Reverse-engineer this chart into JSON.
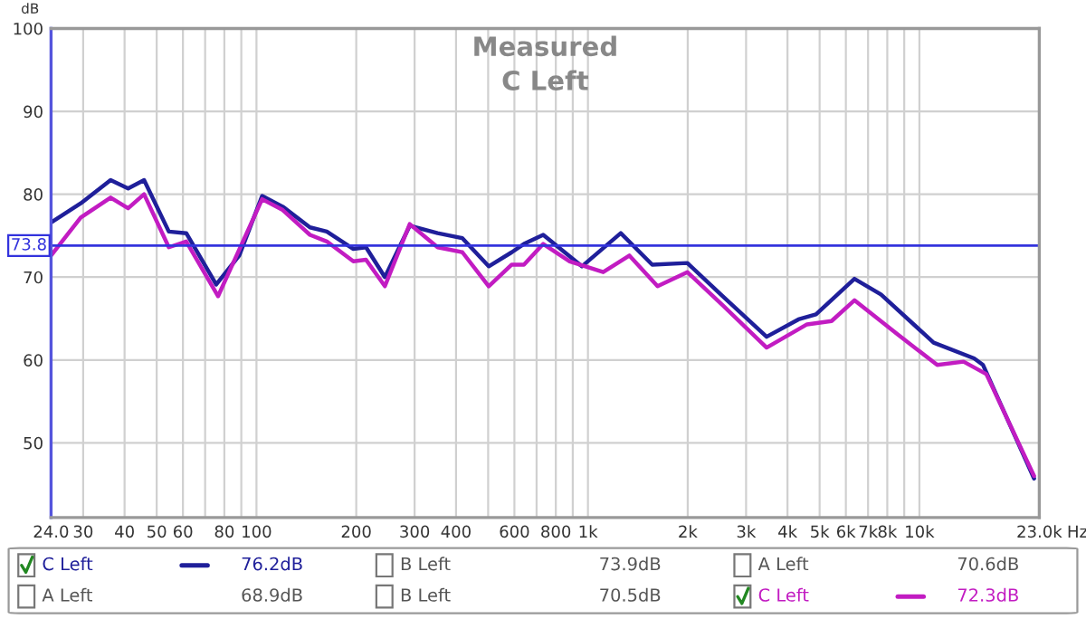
{
  "chart_data": {
    "type": "line",
    "title": "Measured",
    "subtitle": "C Left",
    "ylabel": "dB",
    "log": "x",
    "xlim": [
      24,
      23000
    ],
    "ylim": [
      41,
      100
    ],
    "xticks": [
      {
        "value": 24,
        "label": "24.0"
      },
      30,
      40,
      50,
      60,
      {
        "value": 70,
        "label": null
      },
      80,
      {
        "value": 90,
        "label": null
      },
      100,
      200,
      300,
      400,
      {
        "value": 500,
        "label": null
      },
      600,
      {
        "value": 700,
        "label": null
      },
      800,
      {
        "value": 900,
        "label": null
      },
      {
        "value": 1000,
        "label": "1k"
      },
      {
        "value": 2000,
        "label": "2k"
      },
      {
        "value": 3000,
        "label": "3k"
      },
      {
        "value": 4000,
        "label": "4k"
      },
      {
        "value": 5000,
        "label": "5k"
      },
      {
        "value": 6000,
        "label": "6k"
      },
      {
        "value": 7000,
        "label": "7k"
      },
      {
        "value": 8000,
        "label": "8k"
      },
      {
        "value": 9000,
        "label": null
      },
      {
        "value": 10000,
        "label": "10k"
      },
      {
        "value": 23000,
        "label": "23.0k"
      }
    ],
    "xlabel": "Hz",
    "yticks": [
      50,
      60,
      70,
      80,
      90,
      100
    ],
    "grid": true,
    "legend": "bottom",
    "marker": "none",
    "line_style": "solid",
    "ref_lines": [
      {
        "axis": "y",
        "value": 73.8,
        "label": "73.8",
        "color": "#3333dd"
      }
    ],
    "series": [
      {
        "name": "C Left",
        "color": "#1f1f9a",
        "x": [
          24,
          29.5,
          36.3,
          41,
          45.8,
          54.4,
          61.4,
          75.6,
          88.7,
          104,
          120,
          145,
          163,
          196,
          214,
          244,
          290,
          352,
          418,
          502,
          589,
          641,
          733,
          959,
          1256,
          1563,
          1995,
          2551,
          3460,
          4315,
          4875,
          6368,
          7656,
          11040,
          14620,
          15560,
          22180
        ],
        "values": [
          76.6,
          78.9,
          81.7,
          80.7,
          81.7,
          75.5,
          75.3,
          69.1,
          72.6,
          79.8,
          78.5,
          76.0,
          75.5,
          73.4,
          73.6,
          70.0,
          76.2,
          75.3,
          74.7,
          71.3,
          73.0,
          74.0,
          75.1,
          71.3,
          75.3,
          71.5,
          71.7,
          67.7,
          62.8,
          64.9,
          65.5,
          69.8,
          67.9,
          62.1,
          60.2,
          59.4,
          45.7
        ]
      },
      {
        "name": "C Left",
        "color": "#c21cc2",
        "x": [
          24,
          29.5,
          36.3,
          41,
          45.8,
          54.4,
          61.4,
          76.6,
          104,
          120,
          145,
          163,
          196,
          214,
          244,
          290,
          352,
          418,
          502,
          589,
          641,
          733,
          881,
          1112,
          1334,
          1622,
          1995,
          2551,
          3460,
          4581,
          5433,
          6368,
          8650,
          11320,
          13590,
          15920,
          22180
        ],
        "values": [
          72.6,
          77.2,
          79.6,
          78.3,
          80.0,
          73.6,
          74.3,
          67.7,
          79.4,
          78.1,
          75.1,
          74.3,
          71.9,
          72.1,
          68.9,
          76.4,
          73.6,
          73.0,
          68.9,
          71.5,
          71.5,
          74.0,
          71.9,
          70.6,
          72.6,
          68.9,
          70.6,
          66.6,
          61.5,
          64.3,
          64.7,
          67.2,
          63.0,
          59.4,
          59.8,
          58.3,
          46.0
        ]
      }
    ],
    "annotations": [
      "76.2dB",
      "B Left",
      "73.9dB",
      "A Left",
      "70.6dB",
      "A Left",
      "68.9dB",
      "B Left",
      "70.5dB",
      "72.3dB"
    ]
  }
}
